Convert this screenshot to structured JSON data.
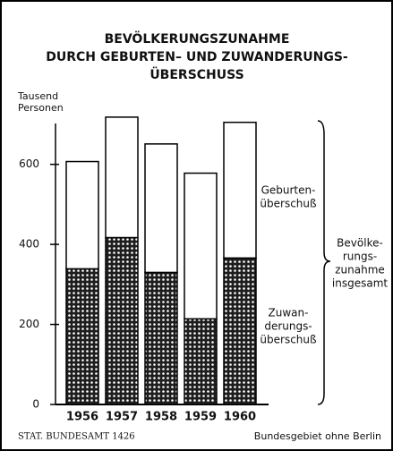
{
  "chart_data": {
    "type": "stacked_bar",
    "title": [
      "BEVÖLKERUNGSZUNAHME",
      "DURCH GEBURTEN– UND ZUWANDERUNGS-",
      "ÜBERSCHUSS"
    ],
    "y_label": [
      "Tausend",
      "Personen"
    ],
    "categories": [
      "1956",
      "1957",
      "1958",
      "1959",
      "1960"
    ],
    "series": [
      {
        "name": [
          "Zuwan-",
          "derungs-",
          "überschuß"
        ],
        "color": "#1e1e1e",
        "hatch": true,
        "values": [
          339,
          417,
          330,
          214,
          366
        ]
      },
      {
        "name": [
          "Geburten-",
          "überschuß"
        ],
        "color": "#ffffff",
        "hatch": false,
        "values": [
          268,
          301,
          321,
          364,
          339
        ]
      }
    ],
    "annotation": [
      "Bevölke-",
      "rungs-",
      "zunahme",
      "insgesamt"
    ],
    "ylim": [
      0,
      720
    ],
    "yticks": [
      0,
      200,
      400,
      600
    ],
    "footer_left": "STAT. BUNDESAMT 1426",
    "footer_right": "Bundesgebiet ohne Berlin"
  }
}
